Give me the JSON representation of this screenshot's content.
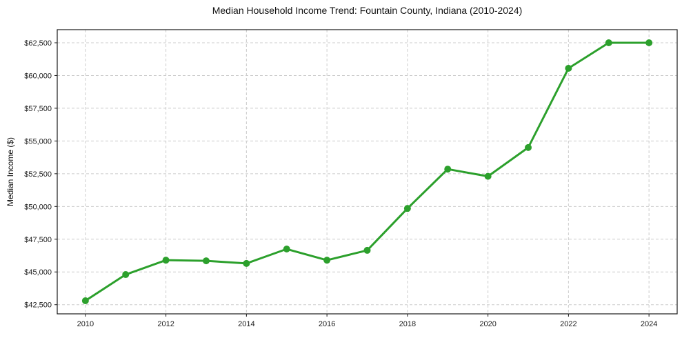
{
  "chart_data": {
    "type": "line",
    "title": "Median Household Income Trend: Fountain County, Indiana (2010-2024)",
    "xlabel": "",
    "ylabel": "Median Income ($)",
    "x": [
      2010,
      2011,
      2012,
      2013,
      2014,
      2015,
      2016,
      2017,
      2018,
      2019,
      2020,
      2021,
      2022,
      2023,
      2024
    ],
    "values": [
      42800,
      44800,
      45900,
      45850,
      45650,
      46750,
      45900,
      46650,
      49850,
      52850,
      52300,
      54500,
      60550,
      62500,
      62500
    ],
    "xticks": [
      2010,
      2012,
      2014,
      2016,
      2018,
      2020,
      2022,
      2024
    ],
    "xtick_labels": [
      "2010",
      "2012",
      "2014",
      "2016",
      "2018",
      "2020",
      "2022",
      "2024"
    ],
    "yticks": [
      42500,
      45000,
      47500,
      50000,
      52500,
      55000,
      57500,
      60000,
      62500
    ],
    "ytick_labels": [
      "$42,500",
      "$45,000",
      "$47,500",
      "$50,000",
      "$52,500",
      "$55,000",
      "$57,500",
      "$60,000",
      "$62,500"
    ],
    "xlim": [
      2009.3,
      2024.7
    ],
    "ylim": [
      41800,
      63500
    ],
    "grid": true,
    "legend": "none",
    "colors": {
      "line": "#2ca02c",
      "marker": "#2ca02c",
      "grid": "#cccccc",
      "text": "#1a1a1a",
      "background": "#ffffff"
    }
  }
}
